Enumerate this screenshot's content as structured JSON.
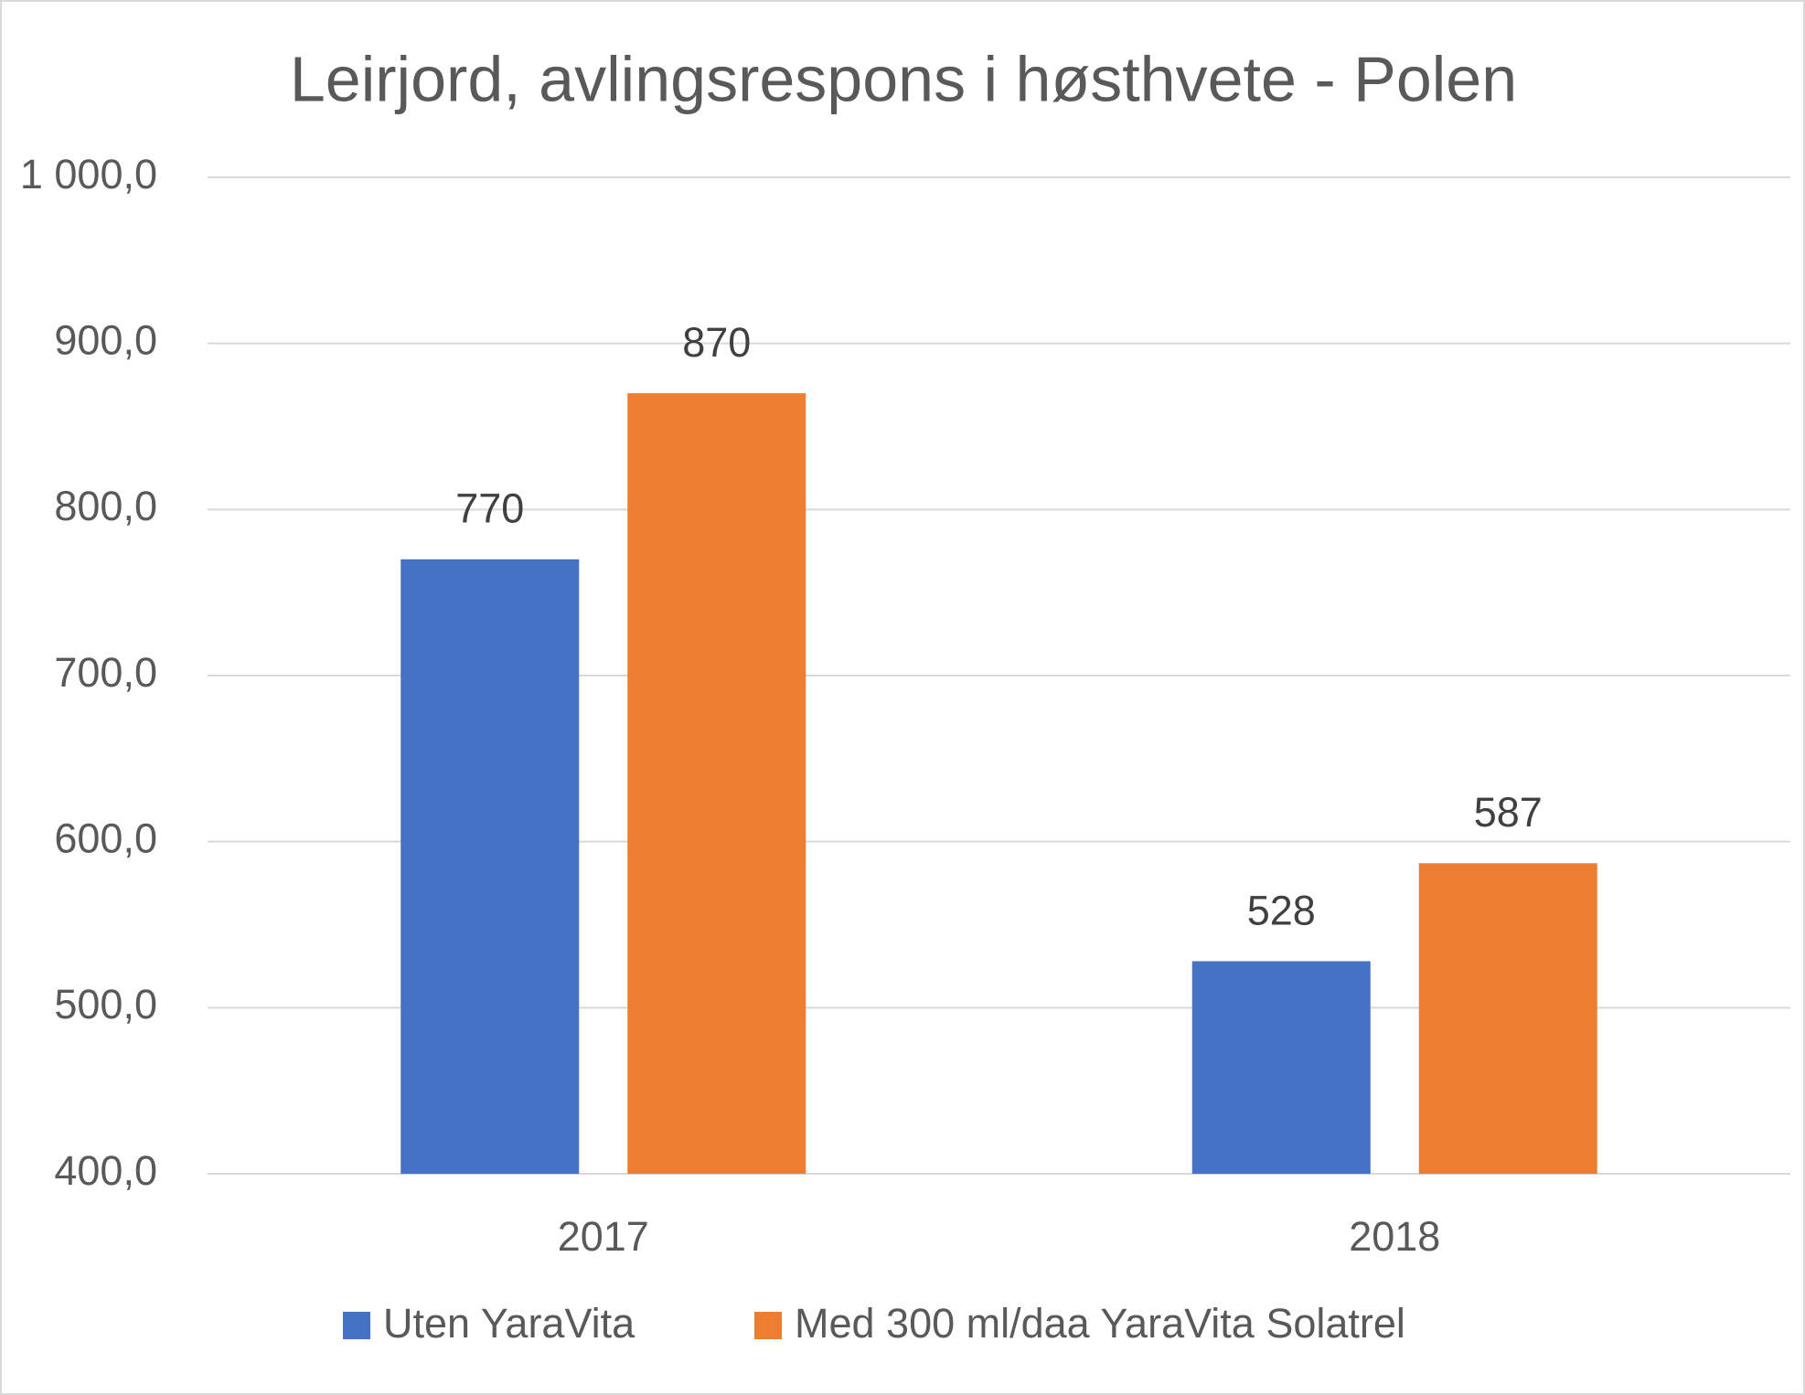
{
  "chart_data": {
    "type": "bar",
    "title": "Leirjord, avlingsrespons i høsthvete - Polen",
    "categories": [
      "2017",
      "2018"
    ],
    "series": [
      {
        "name": "Uten YaraVita",
        "color": "#4472c4",
        "values": [
          770,
          528
        ]
      },
      {
        "name": "Med 300 ml/daa YaraVita Solatrel",
        "color": "#ed7d31",
        "values": [
          870,
          587
        ]
      }
    ],
    "ylim": [
      400,
      1000
    ],
    "yticks": [
      {
        "value": 400,
        "label": "400,0"
      },
      {
        "value": 500,
        "label": "500,0"
      },
      {
        "value": 600,
        "label": "600,0"
      },
      {
        "value": 700,
        "label": "700,0"
      },
      {
        "value": 800,
        "label": "800,0"
      },
      {
        "value": 900,
        "label": "900,0"
      },
      {
        "value": 1000,
        "label": "1 000,0"
      }
    ],
    "grid": true,
    "data_labels": true,
    "legend": "bottom"
  }
}
